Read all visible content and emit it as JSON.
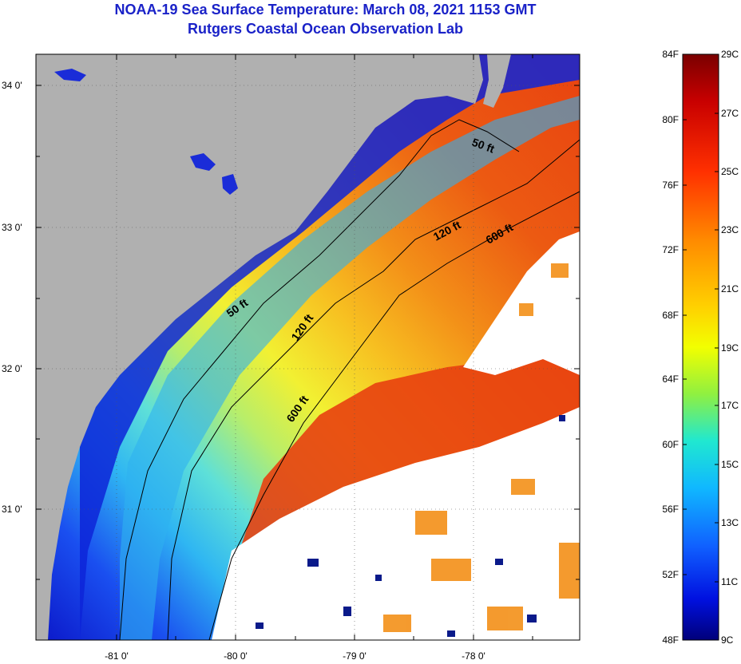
{
  "title": "NOAA-19 Sea Surface Temperature:  March 08, 2021 1153 GMT",
  "subtitle": "Rutgers Coastal Ocean Observation Lab",
  "map": {
    "latitude_ticks": [
      "34 0'",
      "33 0'",
      "32 0'",
      "31 0'"
    ],
    "longitude_ticks": [
      "-81 0'",
      "-80 0'",
      "-79 0'",
      "-78 0'"
    ],
    "contour_labels": [
      {
        "text": "50 ft",
        "id": "50ft-north"
      },
      {
        "text": "50 ft",
        "id": "50ft-south"
      },
      {
        "text": "120 ft",
        "id": "120ft-north"
      },
      {
        "text": "120 ft",
        "id": "120ft-south"
      },
      {
        "text": "600 ft",
        "id": "600ft-north"
      },
      {
        "text": "600 ft",
        "id": "600ft-south"
      }
    ],
    "colors": {
      "land": "#b0b0b0",
      "cloud": "#ffffff"
    }
  },
  "colorbar": {
    "fahrenheit_ticks": [
      "84F",
      "80F",
      "76F",
      "72F",
      "68F",
      "64F",
      "60F",
      "56F",
      "52F",
      "48F"
    ],
    "celsius_ticks": [
      "29C",
      "27C",
      "25C",
      "23C",
      "21C",
      "19C",
      "17C",
      "15C",
      "13C",
      "11C",
      "9C"
    ]
  }
}
